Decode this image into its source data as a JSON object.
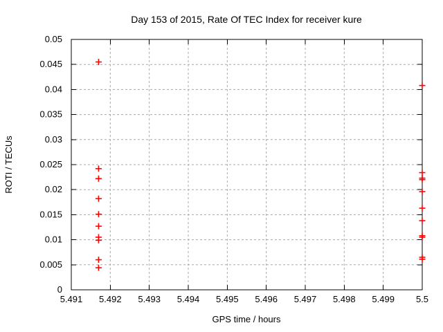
{
  "chart_data": {
    "type": "scatter",
    "title": "Day 153 of 2015, Rate Of TEC Index for receiver kure",
    "xlabel": "GPS time / hours",
    "ylabel": "ROTI / TECUs",
    "xlim": [
      5.491,
      5.5
    ],
    "ylim": [
      0,
      0.05
    ],
    "xticks": [
      5.491,
      5.492,
      5.493,
      5.494,
      5.495,
      5.496,
      5.497,
      5.498,
      5.499,
      5.5
    ],
    "xtick_labels": [
      "5.491",
      "5.492",
      "5.493",
      "5.494",
      "5.495",
      "5.496",
      "5.497",
      "5.498",
      "5.499",
      "5.5"
    ],
    "yticks": [
      0,
      0.005,
      0.01,
      0.015,
      0.02,
      0.025,
      0.03,
      0.035,
      0.04,
      0.045,
      0.05
    ],
    "ytick_labels": [
      "0",
      "0.005",
      "0.01",
      "0.015",
      "0.02",
      "0.025",
      "0.03",
      "0.035",
      "0.04",
      "0.045",
      "0.05"
    ],
    "grid": true,
    "legend": "none",
    "marker": "plus",
    "colors": {
      "marker": "#ff0000",
      "grid": "#a8a8a8",
      "axis": "#000000",
      "text": "#000000",
      "background": "#ffffff"
    },
    "series": [
      {
        "name": "ROTI",
        "points": [
          [
            5.4917,
            0.0455
          ],
          [
            5.4917,
            0.0242
          ],
          [
            5.4917,
            0.0222
          ],
          [
            5.4917,
            0.0182
          ],
          [
            5.4917,
            0.0151
          ],
          [
            5.4917,
            0.0127
          ],
          [
            5.4917,
            0.0105
          ],
          [
            5.4917,
            0.0099
          ],
          [
            5.4917,
            0.006
          ],
          [
            5.4917,
            0.0044
          ],
          [
            5.5,
            0.0408
          ],
          [
            5.5,
            0.0234
          ],
          [
            5.5,
            0.0223
          ],
          [
            5.5,
            0.022
          ],
          [
            5.5,
            0.0196
          ],
          [
            5.5,
            0.0163
          ],
          [
            5.5,
            0.0138
          ],
          [
            5.5,
            0.0108
          ],
          [
            5.5,
            0.0105
          ],
          [
            5.5,
            0.0065
          ],
          [
            5.5,
            0.0061
          ]
        ]
      }
    ]
  }
}
